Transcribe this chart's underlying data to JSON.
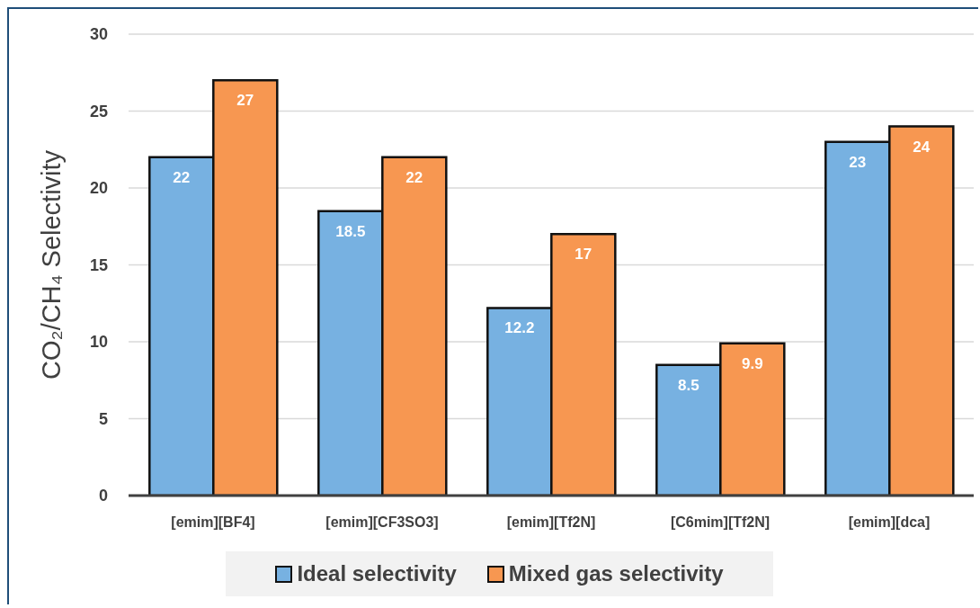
{
  "chart_data": {
    "type": "bar",
    "categories": [
      "[emim][BF4]",
      "[emim][CF3SO3]",
      "[emim][Tf2N]",
      "[C6mim][Tf2N]",
      "[emim][dca]"
    ],
    "series": [
      {
        "name": "Ideal selectivity",
        "color": "#77b1e1",
        "values": [
          22,
          18.5,
          12.2,
          8.5,
          23
        ]
      },
      {
        "name": "Mixed gas selectivity",
        "color": "#f79751",
        "values": [
          27,
          22,
          17,
          9.9,
          24
        ]
      }
    ],
    "ylabel": "CO₂/CH₄ Selectivity",
    "ylim": [
      0,
      30
    ],
    "yticks": [
      0,
      5,
      10,
      15,
      20,
      25,
      30
    ],
    "grid": "y",
    "legend": "bottom",
    "data_labels": true
  }
}
